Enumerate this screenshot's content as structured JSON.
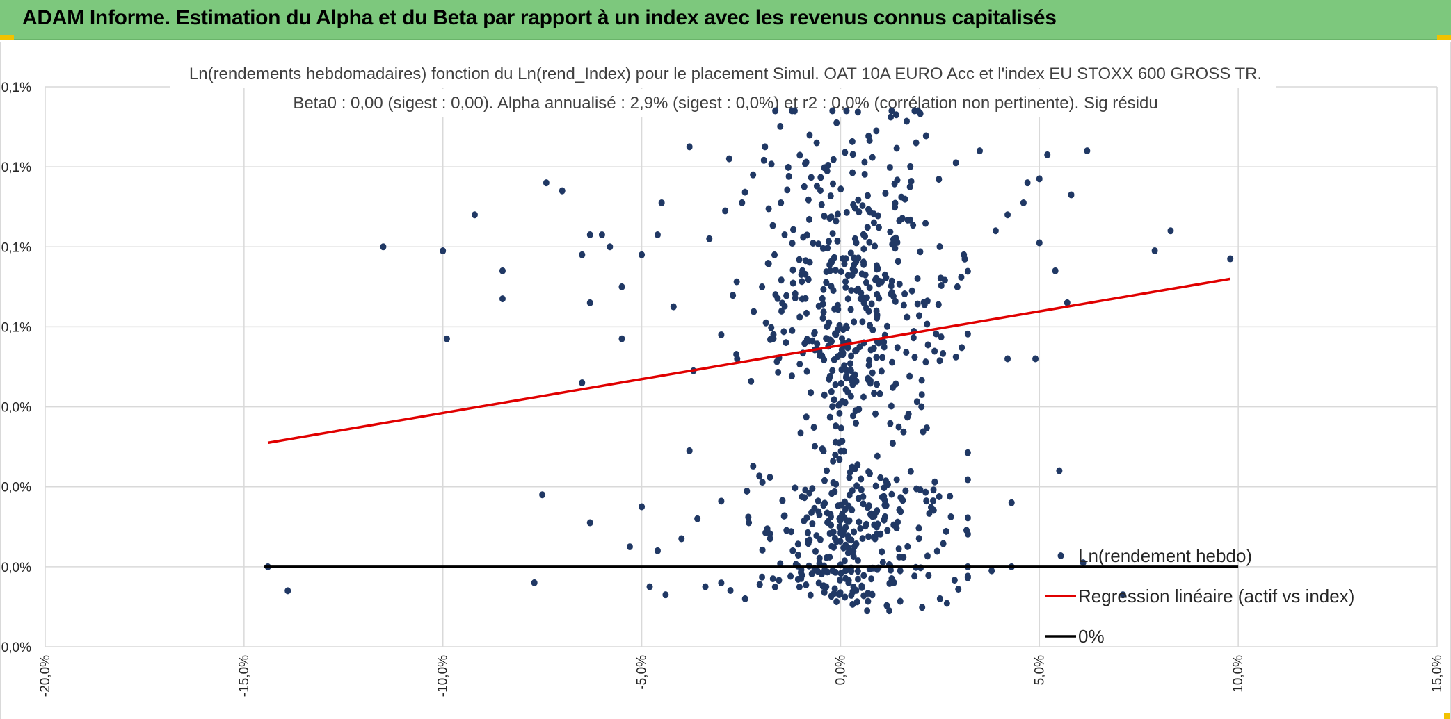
{
  "banner": {
    "title": "ADAM Informe. Estimation du Alpha et du Beta par rapport à un index avec les revenus connus capitalisés",
    "bg_color": "#7dc87d",
    "corner_color": "#f2c200"
  },
  "chart_data": {
    "type": "scatter",
    "title_line1": "Ln(rendements hebdomadaires) fonction du Ln(rend_Index) pour le placement Simul. OAT 10A EURO Acc et l'index EU STOXX 600 GROSS TR.",
    "title_line2": "Beta0 : 0,00 (sigest : 0,00). Alpha annualisé : 2,9% (sigest : 0,0%) et r2 : 0,0% (corrélation non pertinente). Sig résidu",
    "xlim": [
      -20,
      15
    ],
    "ylim": [
      0,
      0.0014
    ],
    "x_ticks": [
      -20,
      -15,
      -10,
      -5,
      0,
      5,
      10,
      15
    ],
    "x_tick_labels": [
      "-20,0%",
      "-15,0%",
      "-10,0%",
      "-5,0%",
      "0,0%",
      "5,0%",
      "10,0%",
      "15,0%"
    ],
    "y_ticks": [
      0,
      0.0002,
      0.0004,
      0.0006,
      0.0008,
      0.001,
      0.0012,
      0.0014
    ],
    "y_tick_labels": [
      "0,0%",
      "0,0%",
      "0,0%",
      "0,0%",
      "0,1%",
      "0,1%",
      "0,1%",
      "0,1%"
    ],
    "grid": true,
    "legend_position": "bottom-right",
    "legend": [
      {
        "label": "Ln(rendement hebdo)",
        "kind": "marker",
        "color": "#203864"
      },
      {
        "label": "Regression linéaire (actif vs index)",
        "kind": "line",
        "color": "#e00000"
      },
      {
        "label": "0%",
        "kind": "line",
        "color": "#000000"
      }
    ],
    "series": [
      {
        "name": "Ln(rendement hebdo)",
        "kind": "scatter",
        "color": "#203864",
        "points": [
          [
            -14.4,
            0.0002
          ],
          [
            -13.9,
            0.00014
          ],
          [
            -11.5,
            0.001
          ],
          [
            -10.0,
            0.00099
          ],
          [
            -9.9,
            0.00077
          ],
          [
            -9.2,
            0.00108
          ],
          [
            -8.5,
            0.00094
          ],
          [
            -8.5,
            0.00087
          ],
          [
            -7.4,
            0.00116
          ],
          [
            -7.5,
            0.00038
          ],
          [
            -7.7,
            0.00016
          ],
          [
            -7.0,
            0.00114
          ],
          [
            -6.5,
            0.00098
          ],
          [
            -6.3,
            0.00103
          ],
          [
            -6.3,
            0.00086
          ],
          [
            -6.5,
            0.00066
          ],
          [
            -6.3,
            0.00031
          ],
          [
            -6.0,
            0.00103
          ],
          [
            -5.8,
            0.001
          ],
          [
            -5.5,
            0.0009
          ],
          [
            -5.5,
            0.00077
          ],
          [
            -5.3,
            0.00025
          ],
          [
            -5.0,
            0.00098
          ],
          [
            -5.0,
            0.00035
          ],
          [
            -4.8,
            0.00015
          ],
          [
            -4.5,
            0.00111
          ],
          [
            -4.6,
            0.00024
          ],
          [
            -4.6,
            0.00103
          ],
          [
            -4.4,
            0.00013
          ],
          [
            -4.2,
            0.00085
          ],
          [
            -4.0,
            0.00027
          ],
          [
            -3.8,
            0.00125
          ],
          [
            -3.7,
            0.00069
          ],
          [
            -3.8,
            0.00049
          ],
          [
            -3.6,
            0.00032
          ],
          [
            -3.4,
            0.00015
          ],
          [
            -3.3,
            0.00102
          ],
          [
            -3.0,
            0.00078
          ],
          [
            -2.8,
            0.00122
          ],
          [
            -2.6,
            0.00072
          ],
          [
            -2.4,
            0.00012
          ],
          [
            -1.7,
            0.00017
          ],
          [
            -1.2,
            0.00024
          ],
          [
            0.2,
            0.00016
          ],
          [
            1.5,
            0.00019
          ],
          [
            2.5,
            0.00012
          ],
          [
            3.2,
            0.0002
          ],
          [
            3.8,
            0.00019
          ],
          [
            4.2,
            0.00072
          ],
          [
            4.3,
            0.00036
          ],
          [
            4.3,
            0.0002
          ],
          [
            4.9,
            0.00072
          ],
          [
            4.7,
            0.00116
          ],
          [
            4.6,
            0.00111
          ],
          [
            5.0,
            0.00101
          ],
          [
            5.0,
            0.00117
          ],
          [
            5.2,
            0.00123
          ],
          [
            5.4,
            0.00094
          ],
          [
            5.5,
            0.00044
          ],
          [
            5.7,
            0.00086
          ],
          [
            5.8,
            0.00113
          ],
          [
            6.1,
            0.00021
          ],
          [
            6.2,
            0.00124
          ],
          [
            7.1,
            0.00013
          ],
          [
            7.9,
            0.00099
          ],
          [
            8.3,
            0.00104
          ],
          [
            9.8,
            0.00097
          ],
          [
            1.4,
            0.00133
          ],
          [
            -0.1,
            0.00131
          ],
          [
            0.9,
            0.00129
          ],
          [
            1.9,
            0.00126
          ],
          [
            3.5,
            0.00124
          ],
          [
            -1.9,
            0.00125
          ],
          [
            -2.2,
            0.00118
          ],
          [
            -0.6,
            0.00126
          ],
          [
            2.9,
            0.00121
          ],
          [
            4.2,
            0.00108
          ],
          [
            3.9,
            0.00104
          ],
          [
            3.1,
            0.00098
          ],
          [
            -2.9,
            0.00109
          ],
          [
            -1.5,
            0.00111
          ]
        ],
        "cluster": {
          "x_center": 0.3,
          "x_spread": 1.5,
          "y_center": 0.00087,
          "y_spread": 0.00022,
          "count": 700,
          "seed": 7
        }
      },
      {
        "name": "Regression linéaire (actif vs index)",
        "kind": "line",
        "color": "#e00000",
        "points": [
          [
            -14.4,
            0.00051
          ],
          [
            9.8,
            0.00092
          ]
        ]
      },
      {
        "name": "0%",
        "kind": "line",
        "color": "#000000",
        "points": [
          [
            -14.5,
            0.0002
          ],
          [
            10.0,
            0.0002
          ]
        ]
      }
    ]
  }
}
